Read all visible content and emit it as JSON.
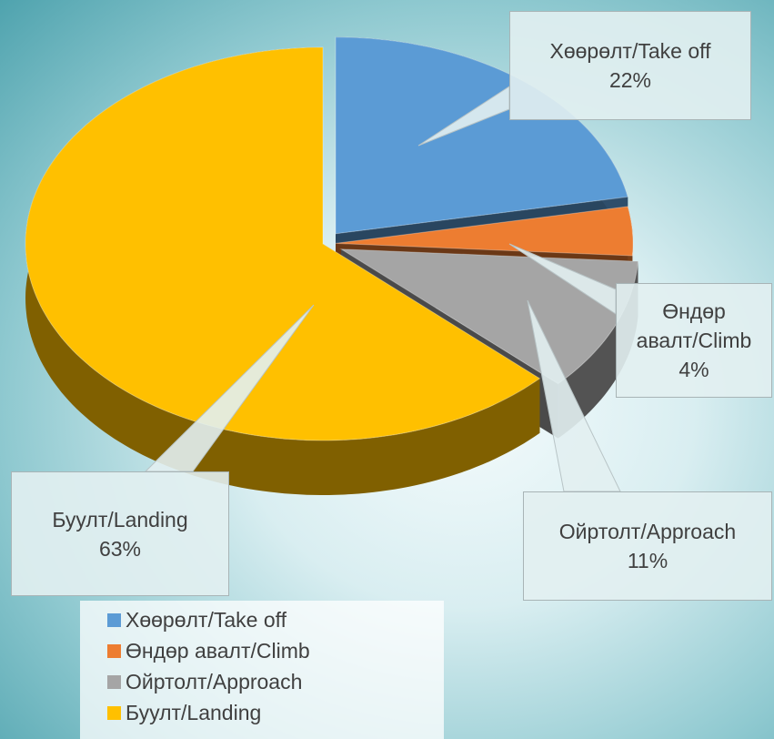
{
  "chart_data": {
    "type": "pie",
    "categories": [
      "Хөөрөлт/Take off",
      "Өндөр авалт/Climb",
      "Ойртолт/Approach",
      "Буулт/Landing"
    ],
    "values": [
      22,
      4,
      11,
      63
    ],
    "value_labels": [
      "22%",
      "4%",
      "11%",
      "63%"
    ],
    "colors": [
      "#5b9bd5",
      "#ed7d31",
      "#a5a5a5",
      "#ffc000"
    ],
    "legend": "bottom"
  }
}
